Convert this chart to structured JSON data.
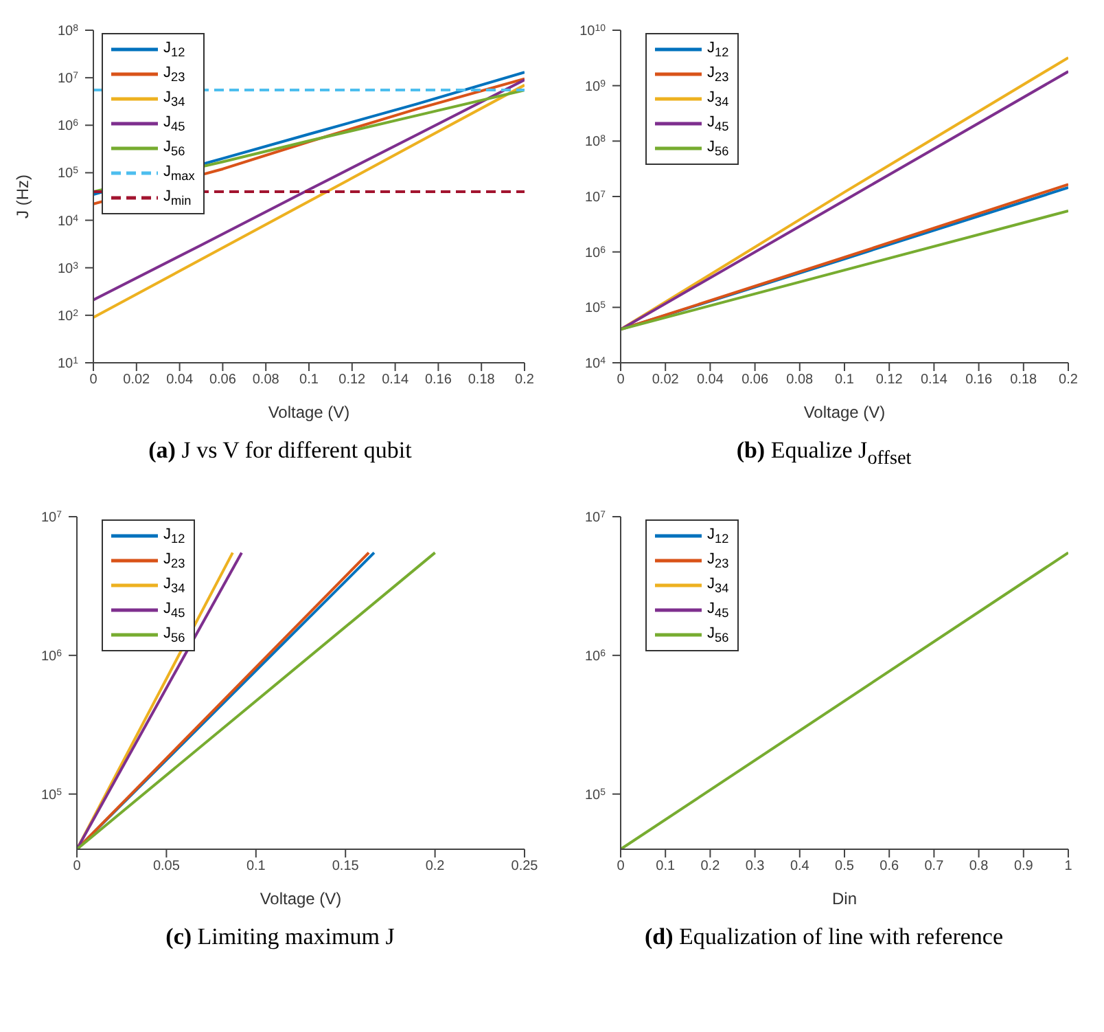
{
  "chart_data": [
    {
      "type": "line",
      "title": "(a) J vs V for different qubit",
      "xlabel": "Voltage (V)",
      "ylabel": "J (Hz)",
      "log": "y",
      "legend": "top left",
      "marker": "none",
      "xlim": [
        0,
        0.2
      ],
      "xticks": [
        0,
        0.02,
        0.04,
        0.06,
        0.08,
        0.1,
        0.12,
        0.14,
        0.16,
        0.18,
        0.2
      ],
      "ylim": [
        10,
        100000000
      ],
      "yticks": [
        {
          "value": 10,
          "label": "10$^{1}$"
        },
        {
          "value": 100,
          "label": "10$^{2}$"
        },
        {
          "value": 1000,
          "label": "10$^{3}$"
        },
        {
          "value": 10000,
          "label": "10$^{4}$"
        },
        {
          "value": 100000,
          "label": "10$^{5}$"
        },
        {
          "value": 1000000,
          "label": "10$^{6}$"
        },
        {
          "value": 10000000,
          "label": "10$^{7}$"
        },
        {
          "value": 100000000,
          "label": "10$^{8}$"
        }
      ],
      "series": [
        {
          "name": "J$_{12}$",
          "color": "#0072bd",
          "x": [
            0,
            0.06,
            0.1,
            0.15,
            0.2
          ],
          "values": [
            35000,
            200000,
            650000,
            2800000,
            13000000
          ]
        },
        {
          "name": "J$_{23}$",
          "color": "#d95319",
          "x": [
            0,
            0.06,
            0.1,
            0.15,
            0.2
          ],
          "values": [
            22000,
            120000,
            450000,
            2200000,
            9500000
          ]
        },
        {
          "name": "J$_{34}$",
          "color": "#edb120",
          "x": [
            0,
            0.05,
            0.1,
            0.15,
            0.2
          ],
          "values": [
            90,
            1500,
            25000,
            420000,
            7000000
          ]
        },
        {
          "name": "J$_{45}$",
          "color": "#7e2f8e",
          "x": [
            0,
            0.05,
            0.1,
            0.15,
            0.2
          ],
          "values": [
            210,
            3000,
            44000,
            630000,
            9000000
          ]
        },
        {
          "name": "J$_{56}$",
          "color": "#77ac30",
          "x": [
            0,
            0.06,
            0.1,
            0.15,
            0.2
          ],
          "values": [
            40000,
            170000,
            470000,
            1600000,
            5500000
          ]
        },
        {
          "name": "J$_{max}$",
          "color": "#4dbeee",
          "line_style": "dashed",
          "x": [
            0,
            0.2
          ],
          "values": [
            5500000,
            5500000
          ]
        },
        {
          "name": "J$_{min}$",
          "color": "#a2142f",
          "line_style": "dashed",
          "x": [
            0,
            0.2
          ],
          "values": [
            40000,
            40000
          ]
        }
      ]
    },
    {
      "type": "line",
      "title": "(b) Equalize J$_{offset}$",
      "xlabel": "Voltage (V)",
      "log": "y",
      "legend": "top left",
      "marker": "none",
      "xlim": [
        0,
        0.2
      ],
      "xticks": [
        0,
        0.02,
        0.04,
        0.06,
        0.08,
        0.1,
        0.12,
        0.14,
        0.16,
        0.18,
        0.2
      ],
      "ylim": [
        10000,
        10000000000
      ],
      "yticks": [
        {
          "value": 10000,
          "label": "10$^{4}$"
        },
        {
          "value": 100000,
          "label": "10$^{5}$"
        },
        {
          "value": 1000000,
          "label": "10$^{6}$"
        },
        {
          "value": 10000000,
          "label": "10$^{7}$"
        },
        {
          "value": 100000000,
          "label": "10$^{8}$"
        },
        {
          "value": 1000000000,
          "label": "10$^{9}$"
        },
        {
          "value": 10000000000,
          "label": "10$^{10}$"
        }
      ],
      "series": [
        {
          "name": "J$_{12}$",
          "color": "#0072bd",
          "x": [
            0,
            0.1,
            0.2
          ],
          "values": [
            40000,
            750000,
            14500000
          ]
        },
        {
          "name": "J$_{23}$",
          "color": "#d95319",
          "x": [
            0,
            0.1,
            0.2
          ],
          "values": [
            40000,
            800000,
            16500000
          ]
        },
        {
          "name": "J$_{34}$",
          "color": "#edb120",
          "x": [
            0,
            0.1,
            0.2
          ],
          "values": [
            40000,
            12000000,
            3200000000
          ]
        },
        {
          "name": "J$_{45}$",
          "color": "#7e2f8e",
          "x": [
            0,
            0.1,
            0.2
          ],
          "values": [
            40000,
            8500000,
            1800000000
          ]
        },
        {
          "name": "J$_{56}$",
          "color": "#77ac30",
          "x": [
            0,
            0.1,
            0.2
          ],
          "values": [
            40000,
            470000,
            5500000
          ]
        }
      ]
    },
    {
      "type": "line",
      "title": "(c) Limiting maximum J",
      "xlabel": "Voltage (V)",
      "log": "y",
      "legend": "top left",
      "marker": "none",
      "xlim": [
        0,
        0.25
      ],
      "xticks": [
        0,
        0.05,
        0.1,
        0.15,
        0.2,
        0.25
      ],
      "ylim": [
        40000,
        10000000
      ],
      "yticks": [
        {
          "value": 100000,
          "label": "10$^{5}$"
        },
        {
          "value": 1000000,
          "label": "10$^{6}$"
        },
        {
          "value": 10000000,
          "label": "10$^{7}$"
        }
      ],
      "series": [
        {
          "name": "J$_{12}$",
          "color": "#0072bd",
          "x": [
            0,
            0.166
          ],
          "values": [
            40000,
            5500000
          ]
        },
        {
          "name": "J$_{23}$",
          "color": "#d95319",
          "x": [
            0,
            0.163
          ],
          "values": [
            40000,
            5500000
          ]
        },
        {
          "name": "J$_{34}$",
          "color": "#edb120",
          "x": [
            0,
            0.087
          ],
          "values": [
            40000,
            5500000
          ]
        },
        {
          "name": "J$_{45}$",
          "color": "#7e2f8e",
          "x": [
            0,
            0.092
          ],
          "values": [
            40000,
            5500000
          ]
        },
        {
          "name": "J$_{56}$",
          "color": "#77ac30",
          "x": [
            0,
            0.2
          ],
          "values": [
            40000,
            5500000
          ]
        }
      ]
    },
    {
      "type": "line",
      "title": "(d) Equalization of line with reference",
      "xlabel": "Din",
      "log": "y",
      "legend": "top left",
      "marker": "none",
      "x": [
        0,
        1
      ],
      "xlim": [
        0,
        1
      ],
      "xticks": [
        0,
        0.1,
        0.2,
        0.3,
        0.4,
        0.5,
        0.6,
        0.7,
        0.8,
        0.9,
        1
      ],
      "ylim": [
        40000,
        10000000
      ],
      "yticks": [
        {
          "value": 100000,
          "label": "10$^{5}$"
        },
        {
          "value": 1000000,
          "label": "10$^{6}$"
        },
        {
          "value": 10000000,
          "label": "10$^{7}$"
        }
      ],
      "series": [
        {
          "name": "J$_{12}$",
          "color": "#0072bd",
          "values": [
            null,
            null
          ]
        },
        {
          "name": "J$_{23}$",
          "color": "#d95319",
          "values": [
            null,
            null
          ]
        },
        {
          "name": "J$_{34}$",
          "color": "#edb120",
          "values": [
            null,
            null
          ]
        },
        {
          "name": "J$_{45}$",
          "color": "#7e2f8e",
          "values": [
            null,
            null
          ]
        },
        {
          "name": "J$_{56}$",
          "color": "#77ac30",
          "values": [
            40000,
            5500000
          ]
        }
      ]
    }
  ]
}
